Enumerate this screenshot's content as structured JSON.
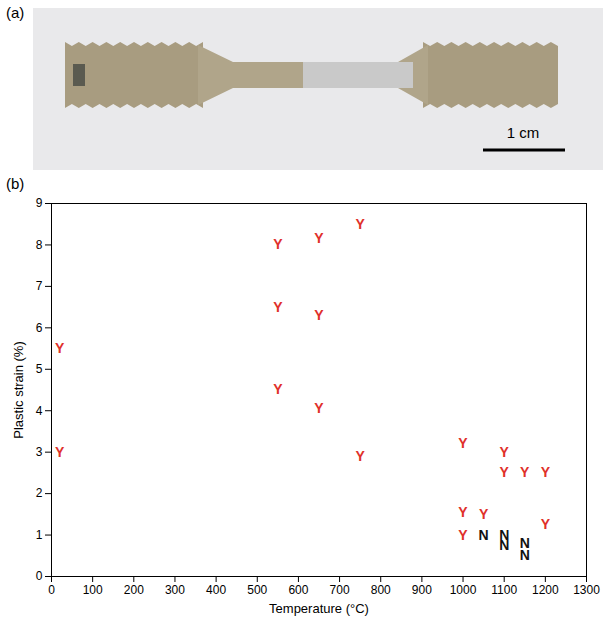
{
  "panel_a": {
    "label": "(a)",
    "scale_bar": "1 cm"
  },
  "panel_b": {
    "label": "(b)"
  },
  "chart_data": {
    "type": "scatter",
    "x_label": "Temperature (°C)",
    "y_label": "Plastic strain (%)",
    "xlim": [
      0,
      1300
    ],
    "xticks": [
      0,
      100,
      200,
      300,
      400,
      500,
      600,
      700,
      800,
      900,
      1000,
      1100,
      1200,
      1300
    ],
    "ylim": [
      0,
      9
    ],
    "yticks": [
      0,
      1,
      2,
      3,
      4,
      5,
      6,
      7,
      8,
      9
    ],
    "grid": false,
    "series": [
      {
        "name": "Y",
        "color": "#e0302a",
        "marker": "letter",
        "x": [
          20,
          20,
          550,
          550,
          550,
          650,
          650,
          650,
          750,
          750,
          1000,
          1000,
          1000,
          1050,
          1100,
          1100,
          1150,
          1200,
          1200
        ],
        "values": [
          5.5,
          3.0,
          8.0,
          6.5,
          4.5,
          8.15,
          6.3,
          4.05,
          8.5,
          2.9,
          3.2,
          1.55,
          1.0,
          1.5,
          3.0,
          2.5,
          2.5,
          2.5,
          1.25
        ]
      },
      {
        "name": "N",
        "color": "#111111",
        "marker": "letter",
        "x": [
          1050,
          1100,
          1100,
          1150,
          1150
        ],
        "values": [
          1.0,
          1.0,
          0.75,
          0.8,
          0.5
        ]
      }
    ]
  }
}
